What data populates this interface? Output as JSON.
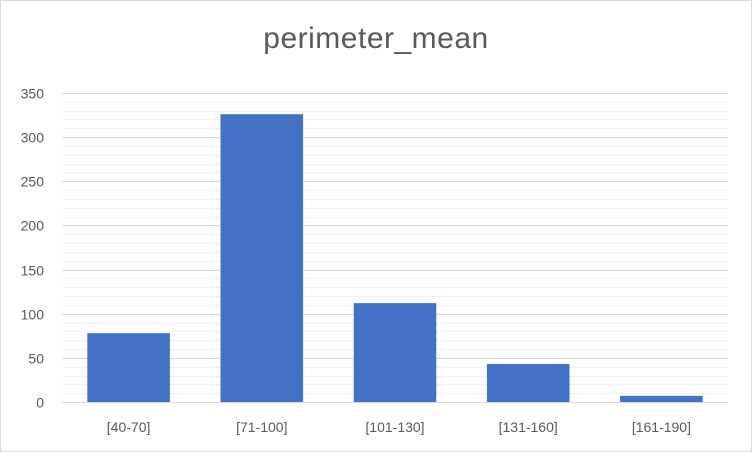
{
  "chart_data": {
    "type": "bar",
    "title": "perimeter_mean",
    "xlabel": "",
    "ylabel": "",
    "categories": [
      "[40-70]",
      "[71-100]",
      "[101-130]",
      "[131-160]",
      "[161-190]"
    ],
    "values": [
      78,
      326,
      112,
      43,
      7
    ],
    "ylim": [
      0,
      350
    ],
    "yticks": [
      0,
      50,
      100,
      150,
      200,
      250,
      300,
      350
    ],
    "minor_grid_step": 10,
    "grid": true,
    "legend": "none",
    "bar_color": "#4472C4"
  }
}
